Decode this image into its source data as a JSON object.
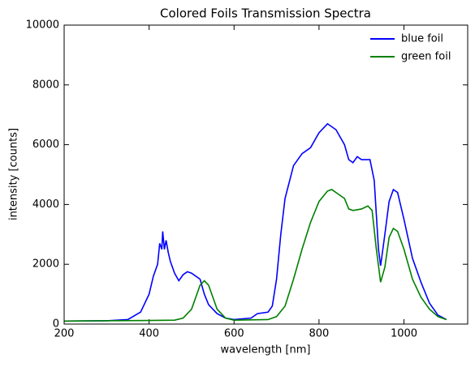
{
  "chart_data": {
    "type": "line",
    "title": "Colored Foils Transmission Spectra",
    "xlabel": "wavelength [nm]",
    "ylabel": "intensity [counts]",
    "xlim": [
      200,
      1150
    ],
    "ylim": [
      0,
      10000
    ],
    "xticks": [
      200,
      400,
      600,
      800,
      1000
    ],
    "yticks": [
      0,
      2000,
      4000,
      6000,
      8000,
      10000
    ],
    "legend": "upper right",
    "series": [
      {
        "name": "blue foil",
        "color": "#0000ff",
        "x": [
          200,
          300,
          350,
          380,
          400,
          410,
          420,
          425,
          430,
          432,
          436,
          440,
          445,
          450,
          460,
          470,
          480,
          490,
          500,
          520,
          530,
          540,
          560,
          580,
          600,
          640,
          655,
          680,
          690,
          700,
          710,
          720,
          740,
          760,
          780,
          800,
          820,
          840,
          860,
          870,
          880,
          890,
          900,
          920,
          930,
          940,
          945,
          955,
          965,
          975,
          985,
          1000,
          1020,
          1040,
          1060,
          1080,
          1100
        ],
        "values": [
          100,
          110,
          150,
          400,
          1000,
          1600,
          2000,
          2700,
          2500,
          3100,
          2500,
          2800,
          2400,
          2100,
          1700,
          1450,
          1650,
          1750,
          1700,
          1500,
          1000,
          650,
          350,
          200,
          150,
          200,
          350,
          400,
          600,
          1500,
          3000,
          4200,
          5300,
          5700,
          5900,
          6400,
          6700,
          6500,
          6000,
          5500,
          5400,
          5600,
          5500,
          5500,
          4800,
          2500,
          1950,
          3000,
          4100,
          4500,
          4400,
          3500,
          2200,
          1400,
          700,
          300,
          150
        ]
      },
      {
        "name": "green foil",
        "color": "#008000",
        "x": [
          200,
          400,
          460,
          480,
          500,
          510,
          520,
          530,
          540,
          550,
          560,
          580,
          600,
          680,
          700,
          720,
          740,
          760,
          780,
          800,
          820,
          830,
          840,
          860,
          870,
          880,
          900,
          915,
          925,
          935,
          945,
          955,
          965,
          975,
          985,
          1000,
          1020,
          1040,
          1060,
          1080,
          1100
        ],
        "values": [
          100,
          120,
          130,
          200,
          500,
          900,
          1300,
          1450,
          1300,
          900,
          500,
          200,
          130,
          150,
          250,
          600,
          1500,
          2500,
          3400,
          4100,
          4450,
          4500,
          4400,
          4200,
          3850,
          3800,
          3850,
          3950,
          3800,
          2500,
          1400,
          1900,
          2900,
          3200,
          3100,
          2500,
          1500,
          900,
          500,
          250,
          150
        ]
      }
    ]
  }
}
